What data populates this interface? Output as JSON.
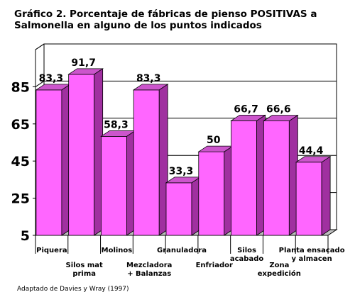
{
  "chart_data": {
    "type": "bar",
    "title_lines": [
      "Gráfico 2. Porcentaje de fábricas de pienso POSITIVAS a",
      "Salmonella en alguno de los puntos indicados"
    ],
    "categories": [
      [
        "Piquera"
      ],
      [
        "Silos mat",
        "prima"
      ],
      [
        "Molinos"
      ],
      [
        "Mezcladora",
        "+ Balanzas"
      ],
      [
        "Granuladora"
      ],
      [
        "Enfriador"
      ],
      [
        "Silos",
        "acabado"
      ],
      [
        "Zona",
        "expedición"
      ],
      [
        "Planta ensacado",
        "y almacen"
      ]
    ],
    "values": [
      83.3,
      91.7,
      58.3,
      83.3,
      33.3,
      50,
      66.7,
      66.6,
      44.4
    ],
    "value_labels": [
      "83,3",
      "91,7",
      "58,3",
      "83,3",
      "33,3",
      "50",
      "66,7",
      "66,6",
      "44,4"
    ],
    "yticks": [
      5,
      25,
      45,
      65,
      85
    ],
    "ylim": [
      5,
      105
    ],
    "grid": true,
    "bar_color": "#FF66FF",
    "bar_side_color": "#A030A0",
    "bar_top_color": "#CC55CC",
    "source_note": "Adaptado de Davies y Wray (1997)"
  }
}
